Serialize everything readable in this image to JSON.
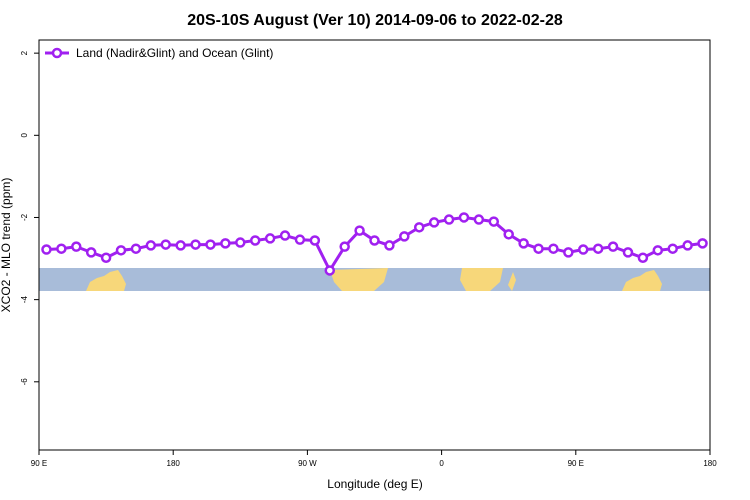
{
  "chart_data": {
    "type": "line",
    "title": "20S-10S August (Ver 10)   2014-09-06 to 2022-02-28",
    "x_label": "Longitude (deg E)",
    "y_label": "XCO2 - MLO trend (ppm)",
    "xlim": [
      90,
      540
    ],
    "xticks": [
      {
        "value": 90,
        "label": "90 E"
      },
      180,
      {
        "value": 270,
        "label": "90 W"
      },
      {
        "value": 360,
        "label": "0"
      },
      {
        "value": 450,
        "label": "90 E"
      },
      {
        "value": 540,
        "label": "180"
      }
    ],
    "ylim": [
      -7.66,
      2.32
    ],
    "yticks": [
      2,
      0,
      -2,
      -4,
      -6
    ],
    "legend_position": "top-left",
    "x": [
      95,
      105,
      115,
      125,
      135,
      145,
      155,
      165,
      175,
      185,
      195,
      205,
      215,
      225,
      235,
      245,
      255,
      265,
      275,
      285,
      295,
      305,
      315,
      325,
      335,
      345,
      355,
      365,
      375,
      385,
      395,
      405,
      415,
      425,
      435,
      445,
      455,
      465,
      475,
      485,
      495,
      505,
      515,
      525,
      535
    ],
    "series": [
      {
        "name": "Land (Nadir&Glint) and Ocean (Glint)",
        "color": "#a020f0",
        "values": [
          -2.78,
          -2.76,
          -2.71,
          -2.85,
          -2.98,
          -2.8,
          -2.76,
          -2.68,
          -2.66,
          -2.68,
          -2.66,
          -2.66,
          -2.63,
          -2.61,
          -2.56,
          -2.51,
          -2.44,
          -2.54,
          -2.56,
          -3.29,
          -2.71,
          -2.32,
          -2.56,
          -2.68,
          -2.46,
          -2.24,
          -2.12,
          -2.05,
          -2.0,
          -2.05,
          -2.1,
          -2.41,
          -2.63,
          -2.76,
          -2.76,
          -2.85,
          -2.78,
          -2.76,
          -2.71,
          -2.85,
          -2.98,
          -2.8,
          -2.76,
          -2.68,
          -2.63
        ]
      }
    ]
  }
}
